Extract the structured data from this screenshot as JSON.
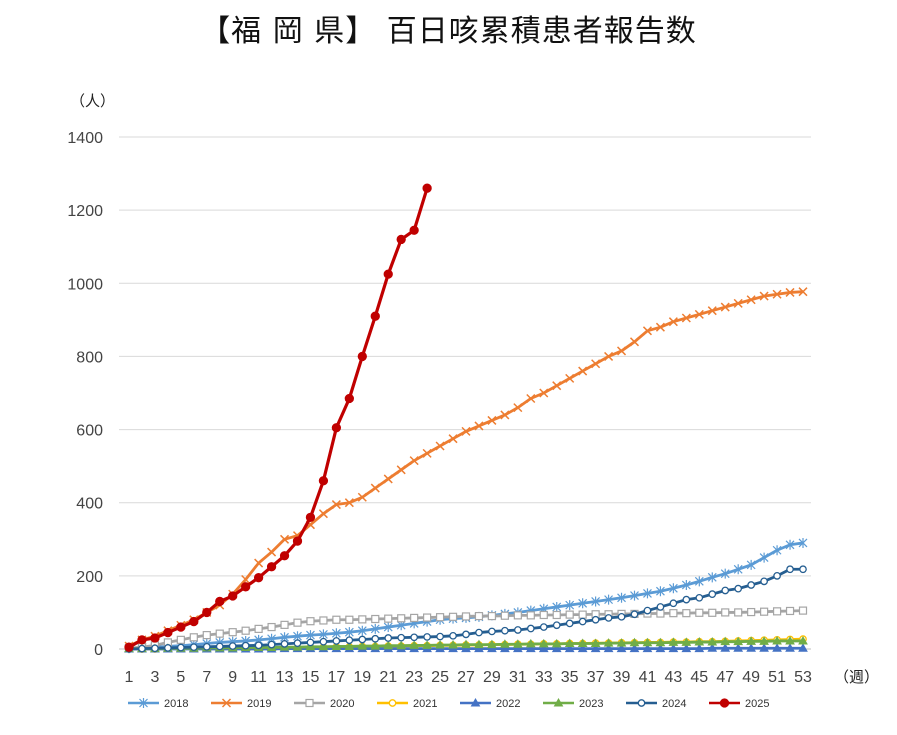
{
  "chart_data": {
    "type": "line",
    "title": "【福 岡 県】 百日咳累積患者報告数",
    "ylabel": "（人）",
    "xlabel": "（週）",
    "ylim": [
      0,
      1400
    ],
    "yticks": [
      0,
      200,
      400,
      600,
      800,
      1000,
      1200,
      1400
    ],
    "xlim": [
      1,
      53
    ],
    "xticks": [
      1,
      3,
      5,
      7,
      9,
      11,
      13,
      15,
      17,
      19,
      21,
      23,
      25,
      27,
      29,
      31,
      33,
      35,
      37,
      39,
      41,
      43,
      45,
      47,
      49,
      51,
      53
    ],
    "grid": "horizontal",
    "legend_position": "bottom",
    "series": [
      {
        "name": "2018",
        "color": "#5b9bd5",
        "marker": "star",
        "values": [
          2,
          3,
          5,
          7,
          9,
          12,
          15,
          18,
          20,
          22,
          25,
          28,
          32,
          35,
          38,
          40,
          43,
          46,
          50,
          55,
          60,
          65,
          70,
          75,
          80,
          83,
          85,
          88,
          92,
          96,
          100,
          105,
          110,
          115,
          120,
          125,
          130,
          135,
          140,
          146,
          152,
          158,
          166,
          175,
          185,
          196,
          206,
          218,
          230,
          250,
          270,
          285,
          290
        ]
      },
      {
        "name": "2019",
        "color": "#ed7d31",
        "marker": "x",
        "values": [
          8,
          25,
          35,
          50,
          65,
          80,
          100,
          120,
          150,
          190,
          235,
          265,
          300,
          310,
          340,
          370,
          395,
          400,
          415,
          440,
          465,
          490,
          515,
          535,
          555,
          575,
          595,
          610,
          625,
          640,
          660,
          685,
          700,
          720,
          740,
          760,
          780,
          800,
          815,
          840,
          870,
          880,
          895,
          905,
          915,
          925,
          935,
          945,
          955,
          965,
          970,
          975,
          977
        ]
      },
      {
        "name": "2020",
        "color": "#a5a5a5",
        "marker": "square",
        "values": [
          2,
          5,
          10,
          18,
          25,
          32,
          38,
          42,
          46,
          50,
          55,
          60,
          66,
          72,
          76,
          78,
          80,
          80,
          81,
          82,
          83,
          84,
          85,
          86,
          87,
          88,
          89,
          90,
          90,
          91,
          92,
          92,
          93,
          93,
          94,
          94,
          95,
          95,
          96,
          96,
          97,
          97,
          98,
          98,
          99,
          99,
          100,
          100,
          101,
          102,
          103,
          104,
          105
        ]
      },
      {
        "name": "2021",
        "color": "#ffc000",
        "marker": "circle",
        "values": [
          0,
          0,
          0,
          1,
          1,
          1,
          2,
          2,
          2,
          3,
          3,
          3,
          4,
          4,
          5,
          5,
          6,
          6,
          7,
          7,
          8,
          8,
          9,
          9,
          10,
          10,
          11,
          11,
          12,
          12,
          13,
          13,
          14,
          14,
          15,
          15,
          16,
          16,
          17,
          17,
          18,
          18,
          19,
          19,
          20,
          20,
          21,
          22,
          23,
          24,
          25,
          26,
          27
        ]
      },
      {
        "name": "2022",
        "color": "#4472c4",
        "marker": "triangle",
        "values": [
          0,
          0,
          0,
          0,
          0,
          0,
          0,
          0,
          0,
          0,
          0,
          0,
          1,
          1,
          1,
          1,
          1,
          1,
          1,
          1,
          1,
          1,
          1,
          1,
          1,
          1,
          1,
          1,
          1,
          1,
          1,
          1,
          1,
          1,
          1,
          1,
          1,
          1,
          1,
          1,
          1,
          1,
          1,
          1,
          1,
          2,
          2,
          2,
          2,
          2,
          2,
          2,
          2
        ]
      },
      {
        "name": "2023",
        "color": "#70ad47",
        "marker": "triangle",
        "values": [
          1,
          1,
          1,
          2,
          2,
          2,
          3,
          3,
          3,
          4,
          4,
          4,
          5,
          5,
          6,
          6,
          7,
          7,
          8,
          8,
          9,
          9,
          10,
          10,
          11,
          11,
          12,
          12,
          12,
          13,
          13,
          14,
          14,
          14,
          15,
          15,
          15,
          16,
          16,
          17,
          17,
          17,
          18,
          18,
          19,
          19,
          20,
          20,
          21,
          21,
          22,
          22,
          22
        ]
      },
      {
        "name": "2024",
        "color": "#255e91",
        "marker": "circle",
        "values": [
          0,
          1,
          2,
          3,
          4,
          5,
          6,
          7,
          8,
          9,
          10,
          12,
          14,
          16,
          18,
          20,
          22,
          24,
          26,
          28,
          30,
          31,
          32,
          33,
          34,
          36,
          40,
          45,
          48,
          50,
          52,
          56,
          60,
          65,
          70,
          75,
          80,
          85,
          88,
          95,
          105,
          115,
          125,
          135,
          140,
          150,
          160,
          165,
          175,
          185,
          200,
          218,
          218
        ]
      },
      {
        "name": "2025",
        "color": "#c00000",
        "marker": "circle",
        "values": [
          5,
          25,
          30,
          45,
          60,
          75,
          100,
          130,
          145,
          170,
          195,
          225,
          255,
          295,
          360,
          460,
          605,
          685,
          800,
          910,
          1025,
          1120,
          1145,
          1260
        ]
      }
    ]
  }
}
